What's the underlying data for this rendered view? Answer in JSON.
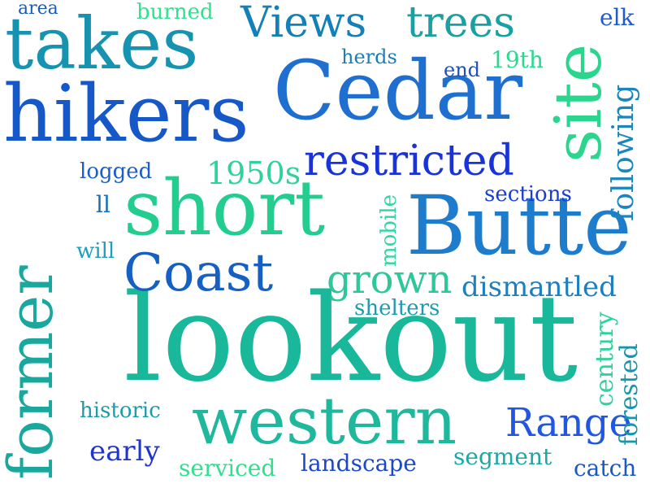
{
  "words": [
    {
      "text": "lookout",
      "color": "#19b89a"
    },
    {
      "text": "Cedar",
      "color": "#1e6fcf"
    },
    {
      "text": "Butte",
      "color": "#1d7ccc"
    },
    {
      "text": "hikers",
      "color": "#1658c8"
    },
    {
      "text": "takes",
      "color": "#1593b0"
    },
    {
      "text": "short",
      "color": "#23cc8f"
    },
    {
      "text": "former",
      "color": "#1aa89e"
    },
    {
      "text": "western",
      "color": "#1fb89c"
    },
    {
      "text": "site",
      "color": "#2ad68d"
    },
    {
      "text": "Coast",
      "color": "#1560c2"
    },
    {
      "text": "restricted",
      "color": "#1a33d6"
    },
    {
      "text": "Range",
      "color": "#2056e0"
    },
    {
      "text": "Views",
      "color": "#157fb8"
    },
    {
      "text": "trees",
      "color": "#19a0a3"
    },
    {
      "text": "grown",
      "color": "#2ec79a"
    },
    {
      "text": "dismantled",
      "color": "#1c7fc0"
    },
    {
      "text": "following",
      "color": "#1a86bd"
    },
    {
      "text": "1950s",
      "color": "#2fd39a"
    },
    {
      "text": "early",
      "color": "#2035cc"
    },
    {
      "text": "landscape",
      "color": "#1c48c8"
    },
    {
      "text": "segment",
      "color": "#1aa8a6"
    },
    {
      "text": "serviced",
      "color": "#2fe08d"
    },
    {
      "text": "historic",
      "color": "#1d9ba8"
    },
    {
      "text": "shelters",
      "color": "#1c9bb0"
    },
    {
      "text": "sections",
      "color": "#1a3fd0"
    },
    {
      "text": "logged",
      "color": "#1b5ec8"
    },
    {
      "text": "century",
      "color": "#2ad49a"
    },
    {
      "text": "forested",
      "color": "#1496ab"
    },
    {
      "text": "mobile",
      "color": "#2fd6a2"
    },
    {
      "text": "catch",
      "color": "#1a58c4"
    },
    {
      "text": "burned",
      "color": "#2fe28e"
    },
    {
      "text": "herds",
      "color": "#1b7fb5"
    },
    {
      "text": "19th",
      "color": "#2ad98f"
    },
    {
      "text": "end",
      "color": "#1d4fbf"
    },
    {
      "text": "elk",
      "color": "#1c5cd0"
    },
    {
      "text": "area",
      "color": "#1c5cb5"
    },
    {
      "text": "ll",
      "color": "#1c6fb5"
    },
    {
      "text": "will",
      "color": "#1c9ec0"
    }
  ]
}
